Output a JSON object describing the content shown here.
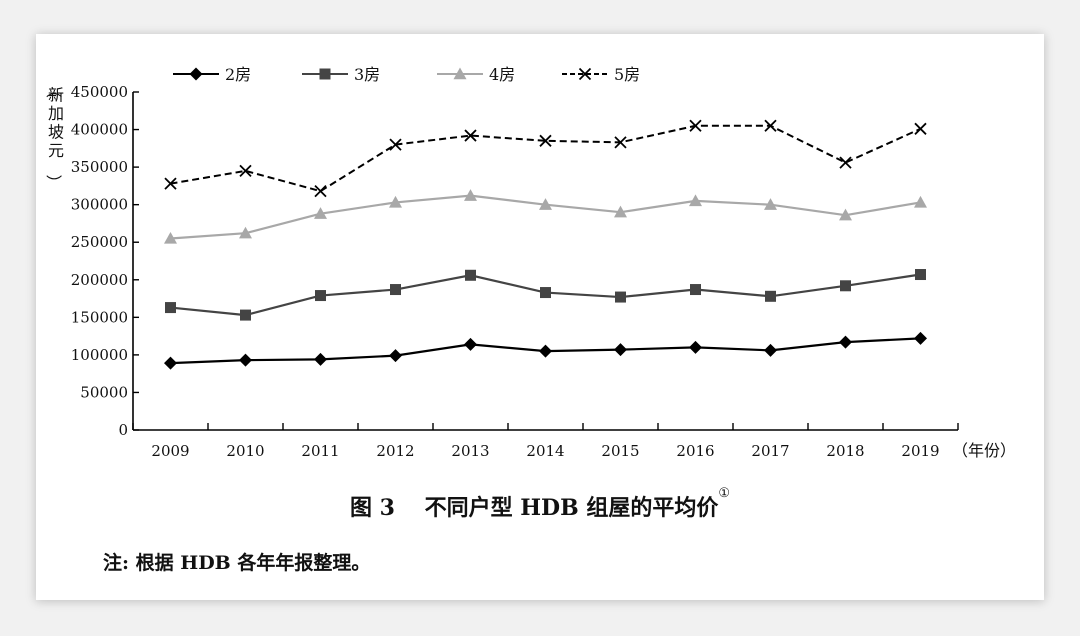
{
  "figure": {
    "caption_prefix": "图 3",
    "caption_text": "不同户型 HDB 组屋的平均价",
    "caption_footnote": "①",
    "note": "注: 根据 HDB 各年年报整理。"
  },
  "chart_data": {
    "type": "line",
    "title": "",
    "xlabel": "（年份）",
    "ylabel": "（新加坡元）",
    "categories": [
      "2009",
      "2010",
      "2011",
      "2012",
      "2013",
      "2014",
      "2015",
      "2016",
      "2017",
      "2018",
      "2019"
    ],
    "ylim": [
      0,
      450000
    ],
    "yticks": [
      0,
      50000,
      100000,
      150000,
      200000,
      250000,
      300000,
      350000,
      400000,
      450000
    ],
    "grid": false,
    "legend_position": "top",
    "series": [
      {
        "name": "2房",
        "marker": "diamond",
        "line": "solid",
        "color": "#000000",
        "values": [
          89000,
          93000,
          94000,
          99000,
          114000,
          105000,
          107000,
          110000,
          106000,
          117000,
          122000
        ]
      },
      {
        "name": "3房",
        "marker": "square",
        "line": "solid",
        "color": "#444444",
        "values": [
          163000,
          153000,
          179000,
          187000,
          206000,
          183000,
          177000,
          187000,
          178000,
          192000,
          207000
        ]
      },
      {
        "name": "4房",
        "marker": "triangle",
        "line": "solid",
        "color": "#a8a8a8",
        "values": [
          255000,
          262000,
          288000,
          303000,
          312000,
          300000,
          290000,
          305000,
          300000,
          286000,
          303000
        ]
      },
      {
        "name": "5房",
        "marker": "x",
        "line": "dashed",
        "color": "#000000",
        "values": [
          328000,
          345000,
          318000,
          380000,
          392000,
          385000,
          383000,
          405000,
          405000,
          356000,
          401000
        ]
      }
    ]
  }
}
